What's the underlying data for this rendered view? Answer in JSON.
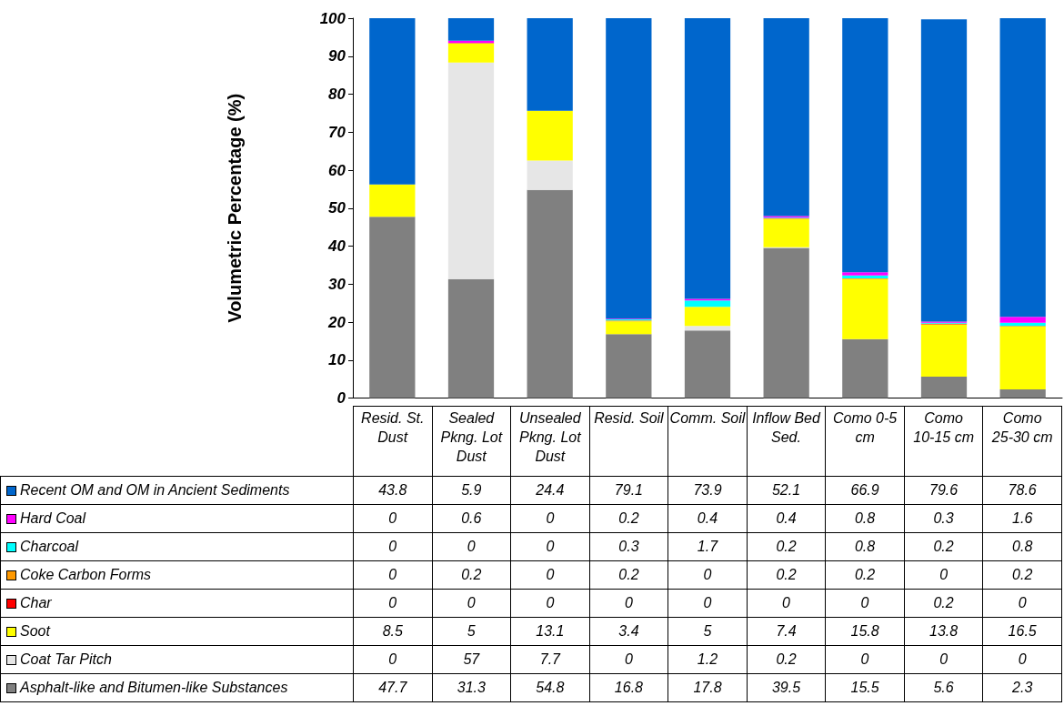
{
  "chart_data": {
    "type": "bar",
    "stacked": true,
    "ylabel": "Volumetric Percentage (%)",
    "categories": [
      "Resid. St. Dust",
      "Sealed Pkng. Lot Dust",
      "Unsealed Pkng. Lot Dust",
      "Resid. Soil",
      "Comm. Soil",
      "Inflow Bed Sed.",
      "Como 0-5 cm",
      "Como 10-15 cm",
      "Como 25-30 cm"
    ],
    "series": [
      {
        "name": "Asphalt-like and Bitumen-like Substances",
        "color": "#808080",
        "values": [
          47.7,
          31.3,
          54.8,
          16.8,
          17.8,
          39.5,
          15.5,
          5.6,
          2.3
        ]
      },
      {
        "name": "Coat Tar Pitch",
        "color": "#e6e6e6",
        "values": [
          0,
          57,
          7.7,
          0,
          1.2,
          0.2,
          0,
          0,
          0
        ]
      },
      {
        "name": "Soot",
        "color": "#ffff00",
        "values": [
          8.5,
          5,
          13.1,
          3.4,
          5,
          7.4,
          15.8,
          13.8,
          16.5
        ]
      },
      {
        "name": "Char",
        "color": "#ff0000",
        "values": [
          0,
          0,
          0,
          0,
          0,
          0,
          0,
          0.2,
          0
        ]
      },
      {
        "name": "Coke Carbon Forms",
        "color": "#ff9900",
        "values": [
          0,
          0.2,
          0,
          0.2,
          0,
          0.2,
          0.2,
          0,
          0.2
        ]
      },
      {
        "name": "Charcoal",
        "color": "#00ffff",
        "values": [
          0,
          0,
          0,
          0.3,
          1.7,
          0.2,
          0.8,
          0.2,
          0.8
        ]
      },
      {
        "name": "Hard Coal",
        "color": "#ff00ff",
        "values": [
          0,
          0.6,
          0,
          0.2,
          0.4,
          0.4,
          0.8,
          0.3,
          1.6
        ]
      },
      {
        "name": "Recent OM and OM in Ancient Sediments",
        "color": "#0066cc",
        "values": [
          43.8,
          5.9,
          24.4,
          79.1,
          73.9,
          52.1,
          66.9,
          79.6,
          78.6
        ]
      }
    ],
    "ylim": [
      0,
      100
    ],
    "yticks": [
      0,
      10,
      20,
      30,
      40,
      50,
      60,
      70,
      80,
      90,
      100
    ],
    "grid": false,
    "legend": "bottom",
    "data_labels": true
  }
}
